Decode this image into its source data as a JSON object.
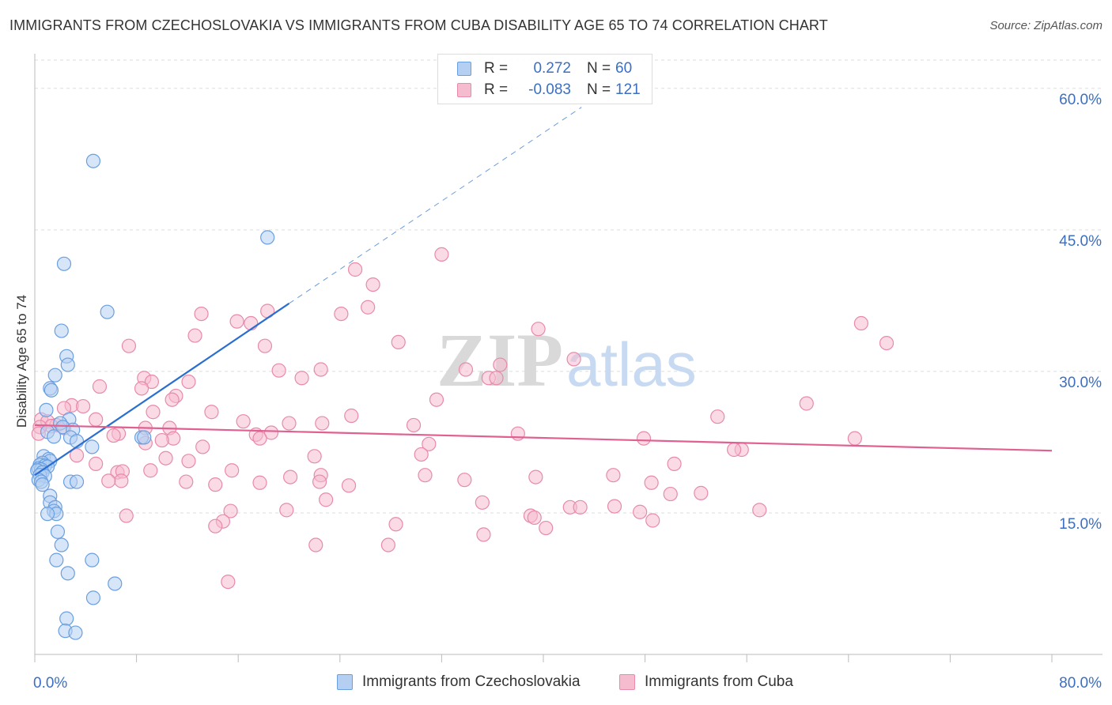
{
  "title": "IMMIGRANTS FROM CZECHOSLOVAKIA VS IMMIGRANTS FROM CUBA DISABILITY AGE 65 TO 74 CORRELATION CHART",
  "source": "Source: ZipAtlas.com",
  "watermark": {
    "zip": "ZIP",
    "atlas": "atlas"
  },
  "legend": {
    "rows": [
      {
        "r_label": "R =",
        "r_value": "0.272",
        "n_label": "N =",
        "n_value": "60"
      },
      {
        "r_label": "R =",
        "r_value": "-0.083",
        "n_label": "N =",
        "n_value": "121"
      }
    ]
  },
  "colors": {
    "blue": "#6a9fe0",
    "blue_fill": "#b5cff2",
    "blue_line": "#2a6fd0",
    "pink": "#e88aaa",
    "pink_fill": "#f5bcd0",
    "pink_line": "#e06090",
    "axis_text": "#3a6fc4"
  },
  "chart_data": {
    "type": "scatter",
    "ylabel": "Disability Age 65 to 74",
    "xlim": [
      0,
      80
    ],
    "ylim": [
      0,
      63
    ],
    "x_tick_labels": [
      "0.0%",
      "80.0%"
    ],
    "y_ticks": [
      15,
      30,
      45,
      60
    ],
    "y_tick_labels": [
      "15.0%",
      "30.0%",
      "45.0%",
      "60.0%"
    ],
    "grid": true,
    "legend_position": "top-center",
    "series": [
      {
        "name": "Immigrants from Czechoslovakia",
        "trend": {
          "x0": 0,
          "y0": 19.0,
          "x1": 20,
          "y1": 37.2,
          "dash_to_x": 43,
          "dash_to_y": 58.0
        },
        "points": [
          [
            4.6,
            52.3
          ],
          [
            18.3,
            44.2
          ],
          [
            2.3,
            41.4
          ],
          [
            5.7,
            36.3
          ],
          [
            2.1,
            34.3
          ],
          [
            2.5,
            31.6
          ],
          [
            2.6,
            30.7
          ],
          [
            1.6,
            29.6
          ],
          [
            1.2,
            28.2
          ],
          [
            1.3,
            28.0
          ],
          [
            0.9,
            25.9
          ],
          [
            2.7,
            24.9
          ],
          [
            2.0,
            24.5
          ],
          [
            2.2,
            24.1
          ],
          [
            3.0,
            23.8
          ],
          [
            1.0,
            23.6
          ],
          [
            1.5,
            23.1
          ],
          [
            2.8,
            23.0
          ],
          [
            8.4,
            23.0
          ],
          [
            8.6,
            23.0
          ],
          [
            3.3,
            22.6
          ],
          [
            4.5,
            22.0
          ],
          [
            0.7,
            21.0
          ],
          [
            1.1,
            20.7
          ],
          [
            1.2,
            20.5
          ],
          [
            0.6,
            20.3
          ],
          [
            0.4,
            20.1
          ],
          [
            0.8,
            20.0
          ],
          [
            1.0,
            19.9
          ],
          [
            0.3,
            19.7
          ],
          [
            0.5,
            19.6
          ],
          [
            0.2,
            19.5
          ],
          [
            0.6,
            19.3
          ],
          [
            0.4,
            19.0
          ],
          [
            0.8,
            18.9
          ],
          [
            0.3,
            18.5
          ],
          [
            0.5,
            18.3
          ],
          [
            2.8,
            18.3
          ],
          [
            3.3,
            18.3
          ],
          [
            0.6,
            18.0
          ],
          [
            1.2,
            16.8
          ],
          [
            1.2,
            16.1
          ],
          [
            1.6,
            15.6
          ],
          [
            1.5,
            15.2
          ],
          [
            1.7,
            14.9
          ],
          [
            1.0,
            14.9
          ],
          [
            1.8,
            13.0
          ],
          [
            2.1,
            11.6
          ],
          [
            1.7,
            10.0
          ],
          [
            4.5,
            10.0
          ],
          [
            2.6,
            8.6
          ],
          [
            6.3,
            7.5
          ],
          [
            4.6,
            6.0
          ],
          [
            2.5,
            3.8
          ],
          [
            2.4,
            2.5
          ],
          [
            3.2,
            2.3
          ]
        ]
      },
      {
        "name": "Immigrants from Cuba",
        "trend": {
          "x0": 0,
          "y0": 24.3,
          "x1": 80,
          "y1": 21.6
        },
        "points": [
          [
            32.0,
            42.4
          ],
          [
            25.2,
            40.8
          ],
          [
            26.6,
            39.2
          ],
          [
            18.3,
            36.4
          ],
          [
            24.1,
            36.1
          ],
          [
            13.1,
            36.1
          ],
          [
            26.2,
            36.8
          ],
          [
            15.9,
            35.3
          ],
          [
            17.0,
            35.1
          ],
          [
            65.0,
            35.1
          ],
          [
            39.6,
            34.5
          ],
          [
            12.6,
            33.8
          ],
          [
            28.6,
            33.1
          ],
          [
            67.0,
            33.0
          ],
          [
            7.4,
            32.7
          ],
          [
            18.1,
            32.7
          ],
          [
            42.4,
            31.3
          ],
          [
            36.6,
            30.7
          ],
          [
            22.5,
            30.2
          ],
          [
            33.9,
            30.2
          ],
          [
            19.2,
            30.1
          ],
          [
            21.0,
            29.3
          ],
          [
            8.6,
            29.3
          ],
          [
            9.2,
            28.9
          ],
          [
            35.7,
            29.3
          ],
          [
            36.3,
            29.3
          ],
          [
            12.1,
            28.9
          ],
          [
            5.1,
            28.4
          ],
          [
            8.4,
            28.2
          ],
          [
            11.1,
            27.4
          ],
          [
            31.6,
            27.0
          ],
          [
            10.8,
            27.0
          ],
          [
            60.7,
            26.6
          ],
          [
            2.9,
            26.4
          ],
          [
            3.8,
            26.3
          ],
          [
            2.3,
            26.1
          ],
          [
            9.3,
            25.7
          ],
          [
            13.9,
            25.7
          ],
          [
            24.9,
            25.3
          ],
          [
            53.7,
            25.2
          ],
          [
            0.5,
            24.9
          ],
          [
            4.8,
            24.9
          ],
          [
            1.0,
            24.7
          ],
          [
            16.4,
            24.7
          ],
          [
            20.0,
            24.5
          ],
          [
            1.7,
            24.3
          ],
          [
            1.3,
            24.2
          ],
          [
            0.4,
            24.1
          ],
          [
            2.3,
            24.0
          ],
          [
            8.7,
            24.0
          ],
          [
            10.6,
            24.0
          ],
          [
            22.6,
            24.5
          ],
          [
            29.8,
            24.3
          ],
          [
            0.3,
            23.4
          ],
          [
            6.6,
            23.4
          ],
          [
            17.4,
            23.3
          ],
          [
            18.6,
            23.5
          ],
          [
            38.0,
            23.4
          ],
          [
            6.2,
            23.2
          ],
          [
            17.7,
            22.9
          ],
          [
            10.9,
            22.9
          ],
          [
            47.9,
            22.9
          ],
          [
            64.5,
            22.9
          ],
          [
            10.0,
            22.7
          ],
          [
            31.0,
            22.3
          ],
          [
            8.7,
            22.4
          ],
          [
            13.2,
            22.0
          ],
          [
            55.6,
            21.7
          ],
          [
            55.0,
            21.7
          ],
          [
            30.4,
            21.2
          ],
          [
            22.0,
            21.0
          ],
          [
            3.3,
            21.1
          ],
          [
            10.3,
            20.8
          ],
          [
            12.1,
            20.5
          ],
          [
            4.8,
            20.2
          ],
          [
            50.3,
            20.2
          ],
          [
            9.1,
            19.5
          ],
          [
            15.5,
            19.5
          ],
          [
            6.5,
            19.3
          ],
          [
            6.9,
            19.4
          ],
          [
            22.5,
            19.0
          ],
          [
            45.5,
            19.0
          ],
          [
            30.7,
            19.0
          ],
          [
            20.1,
            18.8
          ],
          [
            39.4,
            18.8
          ],
          [
            33.8,
            18.5
          ],
          [
            6.8,
            18.4
          ],
          [
            5.8,
            18.4
          ],
          [
            17.7,
            18.2
          ],
          [
            11.9,
            18.3
          ],
          [
            22.4,
            18.3
          ],
          [
            14.2,
            18.0
          ],
          [
            48.5,
            18.2
          ],
          [
            24.7,
            17.9
          ],
          [
            50.0,
            17.0
          ],
          [
            52.4,
            17.1
          ],
          [
            22.9,
            16.4
          ],
          [
            35.2,
            16.1
          ],
          [
            42.1,
            15.6
          ],
          [
            42.9,
            15.6
          ],
          [
            45.6,
            15.7
          ],
          [
            19.8,
            15.3
          ],
          [
            57.0,
            15.3
          ],
          [
            15.4,
            15.2
          ],
          [
            47.6,
            15.1
          ],
          [
            7.2,
            14.7
          ],
          [
            39.0,
            14.7
          ],
          [
            39.3,
            14.5
          ],
          [
            14.8,
            14.1
          ],
          [
            48.6,
            14.2
          ],
          [
            14.2,
            13.6
          ],
          [
            28.4,
            13.8
          ],
          [
            40.2,
            13.4
          ],
          [
            35.3,
            12.7
          ],
          [
            22.1,
            11.6
          ],
          [
            27.8,
            11.6
          ],
          [
            15.2,
            7.7
          ]
        ]
      }
    ]
  }
}
